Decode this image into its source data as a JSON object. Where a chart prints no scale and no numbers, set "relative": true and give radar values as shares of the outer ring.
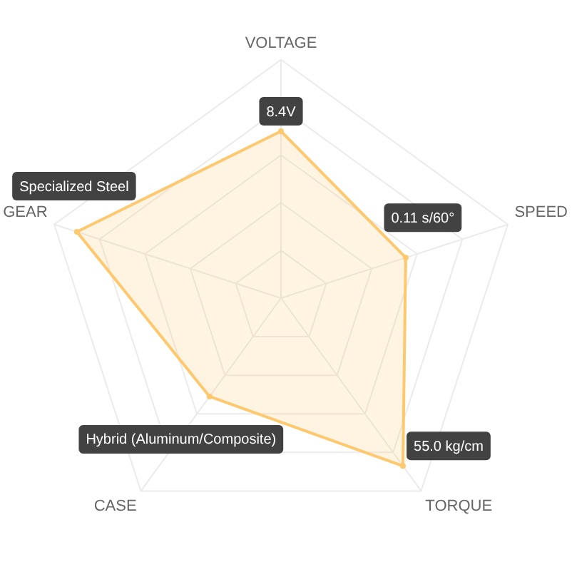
{
  "chart_data": {
    "type": "radar",
    "categories": [
      "VOLTAGE",
      "SPEED",
      "TORQUE",
      "CASE",
      "GEAR"
    ],
    "relative": true,
    "series": [
      {
        "color": "#fdc86e",
        "values": [
          0.7,
          0.55,
          0.87,
          0.51,
          0.9
        ]
      }
    ],
    "annotations": [
      {
        "text": "8.4V",
        "x": "VOLTAGE"
      },
      {
        "text": "0.11 s/60°",
        "x": "SPEED"
      },
      {
        "text": "55.0 kg/cm",
        "x": "TORQUE"
      },
      {
        "text": "Hybrid (Aluminum/Composite)",
        "x": "CASE"
      },
      {
        "text": "Specialized Steel",
        "x": "GEAR"
      }
    ],
    "grid": true,
    "marker": "circle"
  }
}
